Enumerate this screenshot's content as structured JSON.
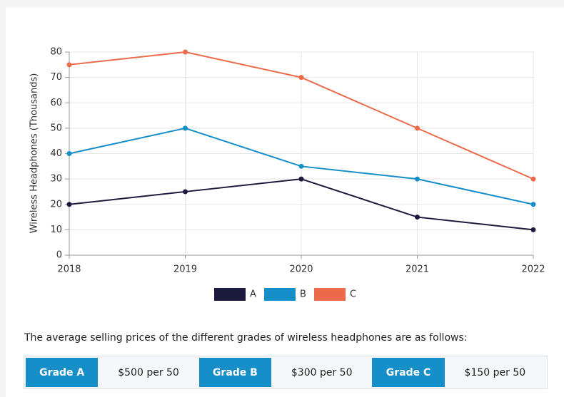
{
  "chart_data": {
    "type": "line",
    "y_label": "Wireless Headphones (Thousands)",
    "categories": [
      "2018",
      "2019",
      "2020",
      "2021",
      "2022"
    ],
    "series": [
      {
        "name": "A",
        "color": "#1c1b3d",
        "values": [
          20,
          25,
          30,
          15,
          10
        ]
      },
      {
        "name": "B",
        "color": "#168fc9",
        "values": [
          40,
          50,
          35,
          30,
          20
        ]
      },
      {
        "name": "C",
        "color": "#ec6a4a",
        "values": [
          75,
          80,
          70,
          50,
          30
        ]
      }
    ],
    "ylim": [
      0,
      80
    ],
    "yticks": [
      0,
      10,
      20,
      30,
      40,
      50,
      60,
      70,
      80
    ],
    "grid": true,
    "legend": "bottom"
  },
  "intro": "The average selling prices of the different grades of wireless headphones are as follows:",
  "prices": [
    {
      "grade": "Grade A",
      "price": "$500 per 50"
    },
    {
      "grade": "Grade B",
      "price": "$300 per 50"
    },
    {
      "grade": "Grade C",
      "price": "$150 per 50"
    }
  ]
}
